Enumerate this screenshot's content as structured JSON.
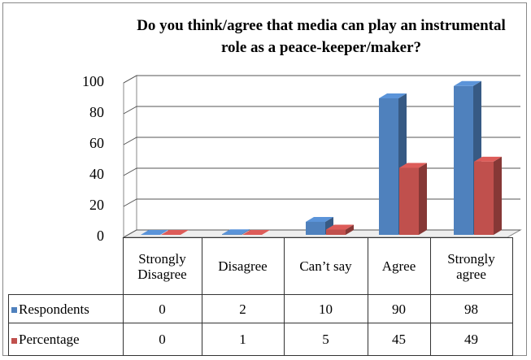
{
  "chart_data": {
    "type": "bar3d",
    "title": "Do you think/agree that media can play an instrumental role as a peace-keeper/maker?",
    "categories": [
      "Strongly Disagree",
      "Disagree",
      "Can’t say",
      "Agree",
      "Strongly agree"
    ],
    "series": [
      {
        "name": "Respondents",
        "color": "#4f81bd",
        "values": [
          0,
          2,
          10,
          90,
          98
        ]
      },
      {
        "name": "Percentage",
        "color": "#c0504d",
        "values": [
          0,
          1,
          5,
          45,
          49
        ]
      }
    ],
    "ylim": [
      0,
      100
    ],
    "yticks": [
      0,
      20,
      40,
      60,
      80,
      100
    ],
    "grid": true
  }
}
